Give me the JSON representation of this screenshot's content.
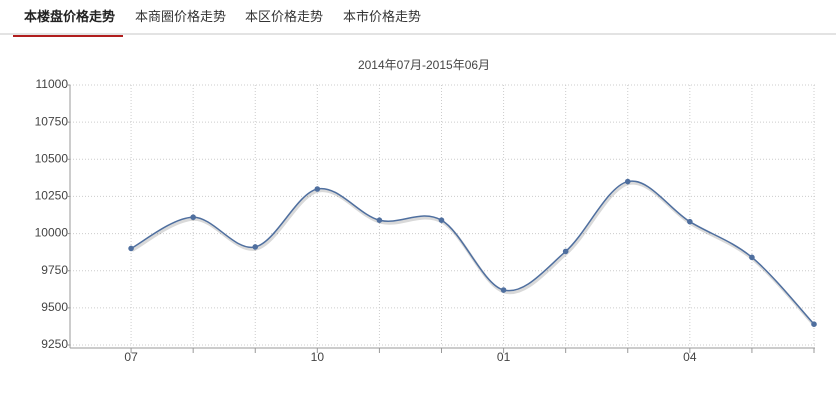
{
  "tabs": [
    "本楼盘价格走势",
    "本商圈价格走势",
    "本区价格走势",
    "本市价格走势"
  ],
  "chart_data": {
    "type": "line",
    "title": "2014年07月-2015年06月",
    "categories": [
      "07",
      null,
      null,
      "10",
      null,
      null,
      "01",
      null,
      null,
      "04",
      null,
      null
    ],
    "values": [
      9900,
      10110,
      9910,
      10300,
      10090,
      10090,
      9620,
      9880,
      10350,
      10080,
      9840,
      9390
    ],
    "color": "#4f6f9f",
    "ylim": [
      9250,
      11000
    ],
    "yticks": [
      9250,
      9500,
      9750,
      10000,
      10250,
      10500,
      10750,
      11000
    ],
    "grid": true
  }
}
